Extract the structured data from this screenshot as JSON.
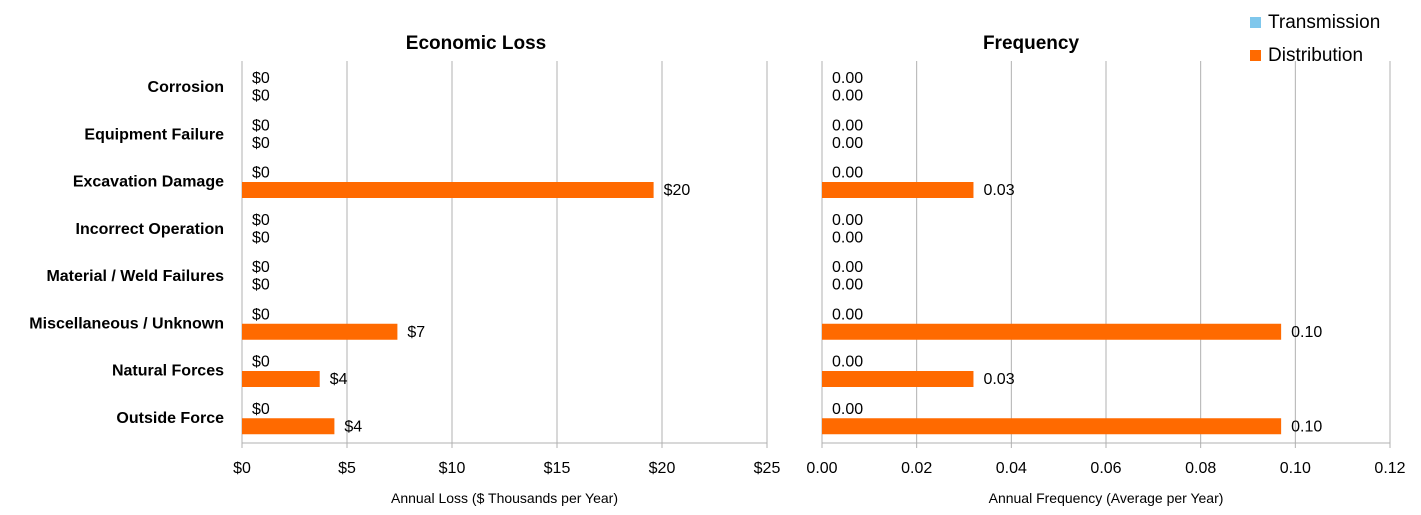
{
  "legend": {
    "items": [
      {
        "label": "Transmission",
        "color": "#7fc7ec"
      },
      {
        "label": "Distribution",
        "color": "#ff6a00"
      }
    ]
  },
  "chart_data": [
    {
      "type": "bar",
      "orientation": "horizontal",
      "title": "Economic Loss",
      "xlabel": "Annual Loss  ($ Thousands per Year)",
      "categories": [
        "Corrosion",
        "Equipment Failure",
        "Excavation Damage",
        "Incorrect Operation",
        "Material / Weld Failures",
        "Miscellaneous / Unknown",
        "Natural Forces",
        "Outside Force"
      ],
      "series": [
        {
          "name": "Transmission",
          "color": "#7fc7ec",
          "values": [
            0,
            0,
            0,
            0,
            0,
            0,
            0,
            0
          ],
          "labels": [
            "$0",
            "$0",
            "$0",
            "$0",
            "$0",
            "$0",
            "$0",
            "$0"
          ]
        },
        {
          "name": "Distribution",
          "color": "#ff6a00",
          "values": [
            0,
            0,
            19.6,
            0,
            0,
            7.4,
            3.7,
            4.4
          ],
          "labels": [
            "$0",
            "$0",
            "$20",
            "$0",
            "$0",
            "$7",
            "$4",
            "$4"
          ]
        }
      ],
      "xlim": [
        0,
        25
      ],
      "xticks": [
        0,
        5,
        10,
        15,
        20,
        25
      ],
      "xtick_labels": [
        "$0",
        "$5",
        "$10",
        "$15",
        "$20",
        "$25"
      ],
      "grid": true
    },
    {
      "type": "bar",
      "orientation": "horizontal",
      "title": "Frequency",
      "xlabel": "Annual Frequency (Average per Year)",
      "categories": [
        "Corrosion",
        "Equipment Failure",
        "Excavation Damage",
        "Incorrect Operation",
        "Material / Weld Failures",
        "Miscellaneous / Unknown",
        "Natural Forces",
        "Outside Force"
      ],
      "series": [
        {
          "name": "Transmission",
          "color": "#7fc7ec",
          "values": [
            0,
            0,
            0,
            0,
            0,
            0,
            0,
            0
          ],
          "labels": [
            "0.00",
            "0.00",
            "0.00",
            "0.00",
            "0.00",
            "0.00",
            "0.00",
            "0.00"
          ]
        },
        {
          "name": "Distribution",
          "color": "#ff6a00",
          "values": [
            0,
            0,
            0.032,
            0,
            0,
            0.097,
            0.032,
            0.097
          ],
          "labels": [
            "0.00",
            "0.00",
            "0.03",
            "0.00",
            "0.00",
            "0.10",
            "0.03",
            "0.10"
          ]
        }
      ],
      "xlim": [
        0,
        0.12
      ],
      "xticks": [
        0,
        0.02,
        0.04,
        0.06,
        0.08,
        0.1,
        0.12
      ],
      "xtick_labels": [
        "0.00",
        "0.02",
        "0.04",
        "0.06",
        "0.08",
        "0.10",
        "0.12"
      ],
      "grid": true
    }
  ]
}
